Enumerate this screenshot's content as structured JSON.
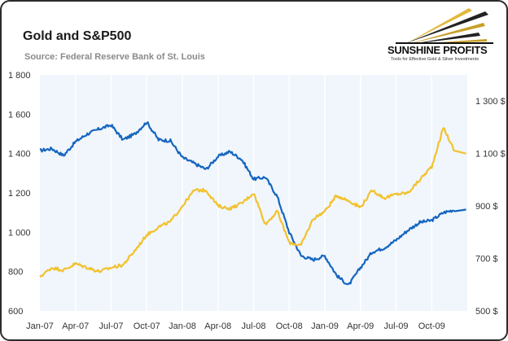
{
  "header": {
    "title": "Gold and S&P500",
    "subtitle": "Source: Federal Reserve Bank of St. Louis"
  },
  "logo": {
    "name": "SUNSHINE PROFITS",
    "tagline": "Tools for Effective Gold & Silver Investments"
  },
  "colors": {
    "sp500": "#1565c0",
    "gold": "#f2c12e",
    "plot_bg": "#f0f6fb",
    "grid": "#ffffff"
  },
  "chart_data": {
    "type": "line",
    "title": "Gold and S&P500",
    "subtitle": "Source: Federal Reserve Bank of St. Louis",
    "x_tick_labels": [
      "Jan-07",
      "Apr-07",
      "Jul-07",
      "Oct-07",
      "Jan-08",
      "Apr-08",
      "Jul-08",
      "Oct-08",
      "Jan-09",
      "Apr-09",
      "Jul-09",
      "Oct-09"
    ],
    "xlim": [
      "2007-01",
      "2009-12"
    ],
    "left_axis": {
      "ylim": [
        600,
        1800
      ],
      "ticks": [
        "600",
        "800",
        "1 000",
        "1 200",
        "1 400",
        "1 600",
        "1 800"
      ]
    },
    "right_axis": {
      "ylim": [
        500,
        1400
      ],
      "ticks": [
        "500 $",
        "700 $",
        "900 $",
        "1 100 $",
        "1 300 $"
      ]
    },
    "grid": "vertical lines at each quarter",
    "series": [
      {
        "color": "#1565c0",
        "axis": "left",
        "x": [
          "2007-01",
          "2007-02",
          "2007-03",
          "2007-04",
          "2007-05",
          "2007-06",
          "2007-07",
          "2007-08",
          "2007-09",
          "2007-10",
          "2007-11",
          "2007-12",
          "2008-01",
          "2008-02",
          "2008-03",
          "2008-04",
          "2008-05",
          "2008-06",
          "2008-07",
          "2008-08",
          "2008-09",
          "2008-10",
          "2008-11",
          "2008-12",
          "2009-01",
          "2009-02",
          "2009-03",
          "2009-04",
          "2009-05",
          "2009-06",
          "2009-07",
          "2009-08",
          "2009-09",
          "2009-10",
          "2009-11",
          "2009-12"
        ],
        "values": [
          1415,
          1425,
          1390,
          1460,
          1500,
          1525,
          1545,
          1470,
          1500,
          1560,
          1470,
          1465,
          1380,
          1350,
          1320,
          1385,
          1410,
          1370,
          1270,
          1280,
          1180,
          1000,
          880,
          860,
          880,
          780,
          730,
          820,
          900,
          920,
          960,
          1010,
          1050,
          1060,
          1100,
          1115
        ]
      },
      {
        "color": "#f2c12e",
        "axis": "right",
        "x": [
          "2007-01",
          "2007-02",
          "2007-03",
          "2007-04",
          "2007-05",
          "2007-06",
          "2007-07",
          "2007-08",
          "2007-09",
          "2007-10",
          "2007-11",
          "2007-12",
          "2008-01",
          "2008-02",
          "2008-03",
          "2008-04",
          "2008-05",
          "2008-06",
          "2008-07",
          "2008-08",
          "2008-09",
          "2008-10",
          "2008-11",
          "2008-12",
          "2009-01",
          "2009-02",
          "2009-03",
          "2009-04",
          "2009-05",
          "2009-06",
          "2009-07",
          "2009-08",
          "2009-09",
          "2009-10",
          "2009-11",
          "2009-12"
        ],
        "values": [
          630,
          665,
          655,
          680,
          665,
          650,
          665,
          675,
          730,
          790,
          820,
          840,
          900,
          960,
          960,
          900,
          890,
          910,
          950,
          830,
          880,
          760,
          750,
          850,
          880,
          940,
          920,
          895,
          960,
          930,
          945,
          950,
          1000,
          1050,
          1200,
          1100
        ]
      }
    ]
  }
}
